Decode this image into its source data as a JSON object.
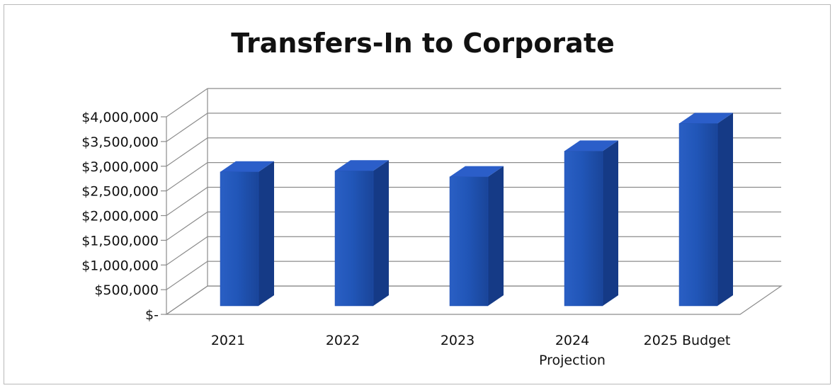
{
  "chart_data": {
    "type": "bar",
    "title": "Transfers-In to Corporate",
    "xlabel": "",
    "ylabel": "",
    "categories": [
      [
        "2021"
      ],
      [
        "2022"
      ],
      [
        "2023"
      ],
      [
        "2024",
        "Projection"
      ],
      [
        "2025 Budget"
      ]
    ],
    "values": [
      2800000,
      2820000,
      2700000,
      3220000,
      3780000
    ],
    "ylim": [
      0,
      4000000
    ],
    "y_ticks": [
      {
        "value": 0,
        "label": "$-"
      },
      {
        "value": 500000,
        "label": "$500,000"
      },
      {
        "value": 1000000,
        "label": "$1,000,000"
      },
      {
        "value": 1500000,
        "label": "$1,500,000"
      },
      {
        "value": 2000000,
        "label": "$2,000,000"
      },
      {
        "value": 2500000,
        "label": "$2,500,000"
      },
      {
        "value": 3000000,
        "label": "$3,000,000"
      },
      {
        "value": 3500000,
        "label": "$3,500,000"
      },
      {
        "value": 4000000,
        "label": "$4,000,000"
      }
    ],
    "grid": true,
    "style": "3d-column",
    "bar_color": "#1f4fb3"
  }
}
